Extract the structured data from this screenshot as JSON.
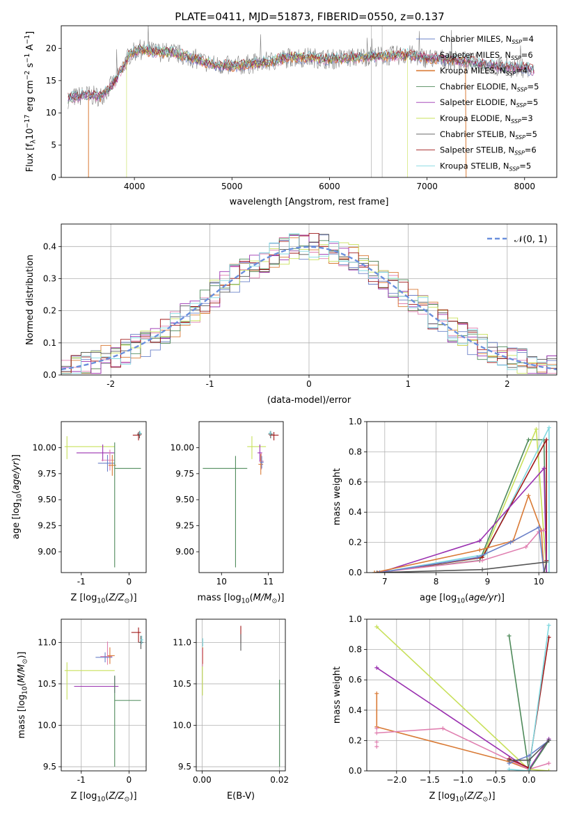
{
  "title": "PLATE=0411, MJD=51873, FIBERID=0550, z=0.137",
  "colors": {
    "chabrier_miles": "#6a80c8",
    "salpeter_miles": "#e07fb0",
    "kroupa_miles": "#d97a35",
    "chabrier_elodie": "#4e8a5a",
    "salpeter_elodie": "#9a30b0",
    "kroupa_elodie": "#c8e05a",
    "chabrier_stelib": "#555555",
    "salpeter_stelib": "#a01818",
    "kroupa_stelib": "#80d8e0",
    "normal": "#6a8fdc",
    "grid": "#b0b0b0",
    "data": "#808080"
  },
  "chart_data": [
    {
      "id": "spectrum",
      "type": "line",
      "xlabel": "wavelength [Angstrom, rest frame]",
      "ylabel": "Flux [f_λ10^-17 erg cm^-2 s^-1 A^-1]",
      "xlim": [
        3250,
        8330
      ],
      "ylim": [
        0,
        23.5
      ],
      "xticks": [
        4000,
        5000,
        6000,
        7000,
        8000
      ],
      "yticks": [
        0,
        5,
        10,
        15,
        20
      ],
      "grid": false,
      "legend_position": "right",
      "series": [
        {
          "name": "Chabrier MILES, N_SSP=4"
        },
        {
          "name": "Salpeter MILES, N_SSP=6"
        },
        {
          "name": "Kroupa MILES, N_SSP=4"
        },
        {
          "name": "Chabrier ELODIE, N_SSP=5"
        },
        {
          "name": "Salpeter ELODIE, N_SSP=5"
        },
        {
          "name": "Kroupa ELODIE, N_SSP=3"
        },
        {
          "name": "Chabrier STELIB, N_SSP=5"
        },
        {
          "name": "Salpeter STELIB, N_SSP=6"
        },
        {
          "name": "Kroupa STELIB, N_SSP=5"
        }
      ],
      "continuum": {
        "x": [
          3320,
          3500,
          3650,
          3800,
          3950,
          4050,
          4200,
          4400,
          4600,
          4800,
          5000,
          5200,
          5400,
          5600,
          5800,
          6000,
          6200,
          6400,
          6600,
          6800,
          7000,
          7200,
          7400,
          7600,
          7800,
          8000,
          8100
        ],
        "y": [
          12.2,
          12.8,
          12.5,
          14.8,
          19.0,
          19.8,
          19.5,
          19.3,
          18.5,
          17.5,
          17.2,
          17.6,
          18.0,
          18.6,
          18.6,
          18.3,
          18.5,
          18.8,
          18.8,
          19.0,
          18.5,
          18.3,
          18.0,
          17.5,
          17.0,
          17.0,
          16.5
        ]
      },
      "model_cutoffs": {
        "kroupa_miles_start": 3530,
        "kroupa_miles_end": 7400,
        "kroupa_elodie_start": 3920,
        "kroupa_elodie_end": 6800
      }
    },
    {
      "id": "residuals",
      "type": "line",
      "xlabel": "(data-model)/error",
      "ylabel": "Normed distribution",
      "xlim": [
        -2.5,
        2.5
      ],
      "ylim": [
        0,
        0.47
      ],
      "xticks": [
        -2,
        -1,
        0,
        1,
        2
      ],
      "yticks": [
        0.0,
        0.1,
        0.2,
        0.3,
        0.4
      ],
      "grid": true,
      "legend_position": "top-right",
      "legend": [
        "𝒩(0, 1)"
      ]
    },
    {
      "id": "age_vs_Z",
      "type": "scatter",
      "xlabel": "Z [log10(Z/Z⊙)]",
      "ylabel": "age [log10(age/yr)]",
      "xlim": [
        -1.42,
        0.36
      ],
      "ylim": [
        8.8,
        10.25
      ],
      "xticks": [
        -1,
        0
      ],
      "yticks": [
        9.0,
        9.25,
        9.5,
        9.75,
        10.0
      ]
    },
    {
      "id": "age_vs_mass",
      "type": "scatter",
      "xlabel": "mass [log10(M/M⊙)]",
      "xlim": [
        9.52,
        11.32
      ],
      "ylim": [
        8.8,
        10.25
      ],
      "xticks": [
        10,
        11
      ],
      "yticks": [
        9.0,
        9.25,
        9.5,
        9.75,
        10.0
      ]
    },
    {
      "id": "mass_weight_vs_age",
      "type": "line",
      "xlabel": "age [log10(age/yr)]",
      "ylabel": "mass weight",
      "xlim": [
        6.65,
        10.35
      ],
      "ylim": [
        0,
        1.0
      ],
      "xticks": [
        7,
        8,
        9,
        10
      ],
      "yticks": [
        0.0,
        0.2,
        0.4,
        0.6,
        0.8,
        1.0
      ],
      "grid": true
    },
    {
      "id": "mass_vs_Z",
      "type": "scatter",
      "xlabel": "Z [log10(Z/Z⊙)]",
      "ylabel": "mass [log10(M/M⊙)]",
      "xlim": [
        -1.42,
        0.36
      ],
      "ylim": [
        9.45,
        11.28
      ],
      "xticks": [
        -1,
        0
      ],
      "yticks": [
        9.5,
        10.0,
        10.5,
        11.0
      ],
      "grid": true
    },
    {
      "id": "mass_vs_ebv",
      "type": "scatter",
      "xlabel": "E(B-V)",
      "xlim": [
        -0.0015,
        0.0215
      ],
      "ylim": [
        9.45,
        11.28
      ],
      "xticks": [
        0.0,
        0.02
      ],
      "yticks": [
        9.5,
        10.0,
        10.5,
        11.0
      ],
      "grid": true
    },
    {
      "id": "mass_weight_vs_Z",
      "type": "line",
      "xlabel": "Z [log10(Z/Z⊙)]",
      "ylabel": "mass weight",
      "xlim": [
        -2.45,
        0.42
      ],
      "ylim": [
        0,
        1.0
      ],
      "xticks": [
        -2.0,
        -1.5,
        -1.0,
        -0.5,
        0.0
      ],
      "yticks": [
        0.0,
        0.2,
        0.4,
        0.6,
        0.8,
        1.0
      ],
      "grid": true
    }
  ]
}
